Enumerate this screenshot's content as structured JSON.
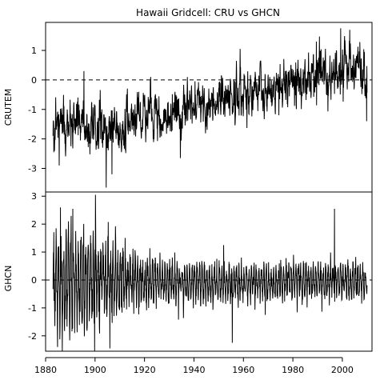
{
  "chart_data": {
    "type": "line",
    "title": "Hawaii Gridcell: CRU vs GHCN",
    "xlim": [
      1880,
      2012
    ],
    "x_ticks": [
      1880,
      1900,
      1920,
      1940,
      1960,
      1980,
      2000
    ],
    "x_range": [
      1883.0,
      2010.0
    ],
    "sampling": "monthly",
    "panels": [
      {
        "name": "crutem",
        "ylabel": "CRUTEM",
        "ylim": [
          -3.8,
          1.95
        ],
        "y_ticks": [
          1,
          0,
          -1,
          -2,
          -3
        ],
        "zero_line": "dashed",
        "trend": [
          [
            1883,
            -1.4
          ],
          [
            1890,
            -1.45
          ],
          [
            1900,
            -1.6
          ],
          [
            1910,
            -1.6
          ],
          [
            1920,
            -1.3
          ],
          [
            1930,
            -1.1
          ],
          [
            1940,
            -0.9
          ],
          [
            1950,
            -0.6
          ],
          [
            1960,
            -0.4
          ],
          [
            1970,
            -0.3
          ],
          [
            1980,
            -0.05
          ],
          [
            1990,
            0.15
          ],
          [
            2000,
            0.3
          ],
          [
            2005,
            0.4
          ],
          [
            2010,
            0.25
          ]
        ],
        "noise_sd": 0.35,
        "extremes": [
          {
            "x": 1904.5,
            "y": -3.65
          },
          {
            "x": 1906.8,
            "y": -3.2
          },
          {
            "x": 1885.5,
            "y": -2.9
          },
          {
            "x": 1934.5,
            "y": -2.65
          },
          {
            "x": 1999.3,
            "y": 1.75
          },
          {
            "x": 2003.0,
            "y": 1.7
          },
          {
            "x": 1989.5,
            "y": 1.3
          },
          {
            "x": 1895.5,
            "y": 0.3
          },
          {
            "x": 1922.5,
            "y": 0.1
          },
          {
            "x": 2009.8,
            "y": -1.4
          }
        ]
      },
      {
        "name": "ghcn",
        "ylabel": "GHCN",
        "ylim": [
          -2.55,
          3.15
        ],
        "y_ticks": [
          3,
          2,
          1,
          0,
          -1,
          -2
        ],
        "zero_line": "dashed",
        "trend": [
          [
            1883,
            0.0
          ],
          [
            1900,
            0.0
          ],
          [
            1950,
            -0.1
          ],
          [
            2000,
            0.0
          ],
          [
            2010,
            -0.1
          ]
        ],
        "amplitude": [
          [
            1883,
            1.8
          ],
          [
            1900,
            1.5
          ],
          [
            1910,
            1.1
          ],
          [
            1920,
            0.75
          ],
          [
            1950,
            0.6
          ],
          [
            2010,
            0.6
          ]
        ],
        "extremes": [
          {
            "x": 1900.2,
            "y": 3.05
          },
          {
            "x": 1906.0,
            "y": -2.45
          },
          {
            "x": 1884.8,
            "y": -2.4
          },
          {
            "x": 1996.8,
            "y": 2.55
          },
          {
            "x": 1955.5,
            "y": -2.25
          },
          {
            "x": 1886.0,
            "y": 2.6
          },
          {
            "x": 1891.0,
            "y": 2.55
          },
          {
            "x": 1952.0,
            "y": 1.25
          }
        ]
      }
    ]
  }
}
